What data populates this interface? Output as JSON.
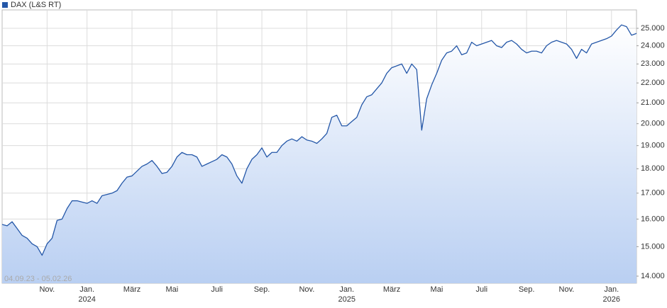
{
  "chart_data": {
    "type": "line",
    "legend": "DAX (L&S RT)",
    "date_range": "04.09.23 - 05.02.26",
    "log_scale": true,
    "grid": true,
    "ylim": [
      13770,
      26100
    ],
    "yticks": [
      {
        "value": 14000,
        "label": "14.000"
      },
      {
        "value": 15000,
        "label": "15.000"
      },
      {
        "value": 16000,
        "label": "16.000"
      },
      {
        "value": 17000,
        "label": "17.000"
      },
      {
        "value": 18000,
        "label": "18.000"
      },
      {
        "value": 19000,
        "label": "19.000"
      },
      {
        "value": 20000,
        "label": "20.000"
      },
      {
        "value": 21000,
        "label": "21.000"
      },
      {
        "value": 22000,
        "label": "22.000"
      },
      {
        "value": 23000,
        "label": "23.000"
      },
      {
        "value": 24000,
        "label": "24.000"
      },
      {
        "value": 25000,
        "label": "25.000"
      }
    ],
    "categories": [
      null,
      null,
      null,
      null,
      null,
      null,
      null,
      null,
      null,
      "Nov.",
      null,
      null,
      null,
      null,
      null,
      null,
      null,
      "Jan.",
      null,
      null,
      null,
      null,
      null,
      null,
      null,
      null,
      "März",
      null,
      null,
      null,
      null,
      null,
      null,
      null,
      "Mai",
      null,
      null,
      null,
      null,
      null,
      null,
      null,
      null,
      "Juli",
      null,
      null,
      null,
      null,
      null,
      null,
      null,
      null,
      "Sep.",
      null,
      null,
      null,
      null,
      null,
      null,
      null,
      null,
      "Nov.",
      null,
      null,
      null,
      null,
      null,
      null,
      null,
      "Jan.",
      null,
      null,
      null,
      null,
      null,
      null,
      null,
      null,
      "März",
      null,
      null,
      null,
      null,
      null,
      null,
      null,
      null,
      "Mai",
      null,
      null,
      null,
      null,
      null,
      null,
      null,
      null,
      "Juli",
      null,
      null,
      null,
      null,
      null,
      null,
      null,
      null,
      "Sep.",
      null,
      null,
      null,
      null,
      null,
      null,
      null,
      "Nov.",
      null,
      null,
      null,
      null,
      null,
      null,
      null,
      null,
      "Jan.",
      null,
      null,
      null,
      null,
      null
    ],
    "category_years": [
      null,
      null,
      null,
      null,
      null,
      null,
      null,
      null,
      null,
      null,
      null,
      null,
      null,
      null,
      null,
      null,
      null,
      "2024",
      null,
      null,
      null,
      null,
      null,
      null,
      null,
      null,
      null,
      null,
      null,
      null,
      null,
      null,
      null,
      null,
      null,
      null,
      null,
      null,
      null,
      null,
      null,
      null,
      null,
      null,
      null,
      null,
      null,
      null,
      null,
      null,
      null,
      null,
      null,
      null,
      null,
      null,
      null,
      null,
      null,
      null,
      null,
      null,
      null,
      null,
      null,
      null,
      null,
      null,
      null,
      "2025",
      null,
      null,
      null,
      null,
      null,
      null,
      null,
      null,
      null,
      null,
      null,
      null,
      null,
      null,
      null,
      null,
      null,
      null,
      null,
      null,
      null,
      null,
      null,
      null,
      null,
      null,
      null,
      null,
      null,
      null,
      null,
      null,
      null,
      null,
      null,
      null,
      null,
      null,
      null,
      null,
      null,
      null,
      null,
      null,
      null,
      null,
      null,
      null,
      null,
      null,
      null,
      null,
      "2026",
      null,
      null,
      null,
      null,
      null
    ],
    "series": [
      {
        "name": "DAX (L&S RT)",
        "color": "#2457a8",
        "values": [
          15800,
          15750,
          15900,
          15650,
          15400,
          15300,
          15100,
          15000,
          14700,
          15100,
          15300,
          15950,
          16000,
          16400,
          16700,
          16700,
          16650,
          16600,
          16700,
          16600,
          16900,
          16950,
          17000,
          17100,
          17400,
          17650,
          17700,
          17900,
          18100,
          18200,
          18350,
          18100,
          17800,
          17850,
          18100,
          18500,
          18700,
          18600,
          18600,
          18500,
          18100,
          18200,
          18300,
          18400,
          18600,
          18500,
          18200,
          17700,
          17400,
          18000,
          18400,
          18600,
          18900,
          18500,
          18700,
          18700,
          19000,
          19200,
          19300,
          19200,
          19400,
          19250,
          19200,
          19100,
          19300,
          19550,
          20300,
          20400,
          19900,
          19900,
          20100,
          20300,
          20900,
          21300,
          21400,
          21700,
          22000,
          22500,
          22800,
          22900,
          23000,
          22500,
          23000,
          22700,
          19700,
          21200,
          21900,
          22500,
          23200,
          23600,
          23700,
          24000,
          23500,
          23600,
          24200,
          24000,
          24100,
          24200,
          24300,
          24000,
          23900,
          24200,
          24300,
          24100,
          23800,
          23600,
          23700,
          23700,
          23600,
          24000,
          24200,
          24300,
          24200,
          24100,
          23800,
          23300,
          23800,
          23600,
          24100,
          24200,
          24300,
          24400,
          24550,
          24900,
          25200,
          25100,
          24600,
          24700
        ]
      }
    ]
  }
}
